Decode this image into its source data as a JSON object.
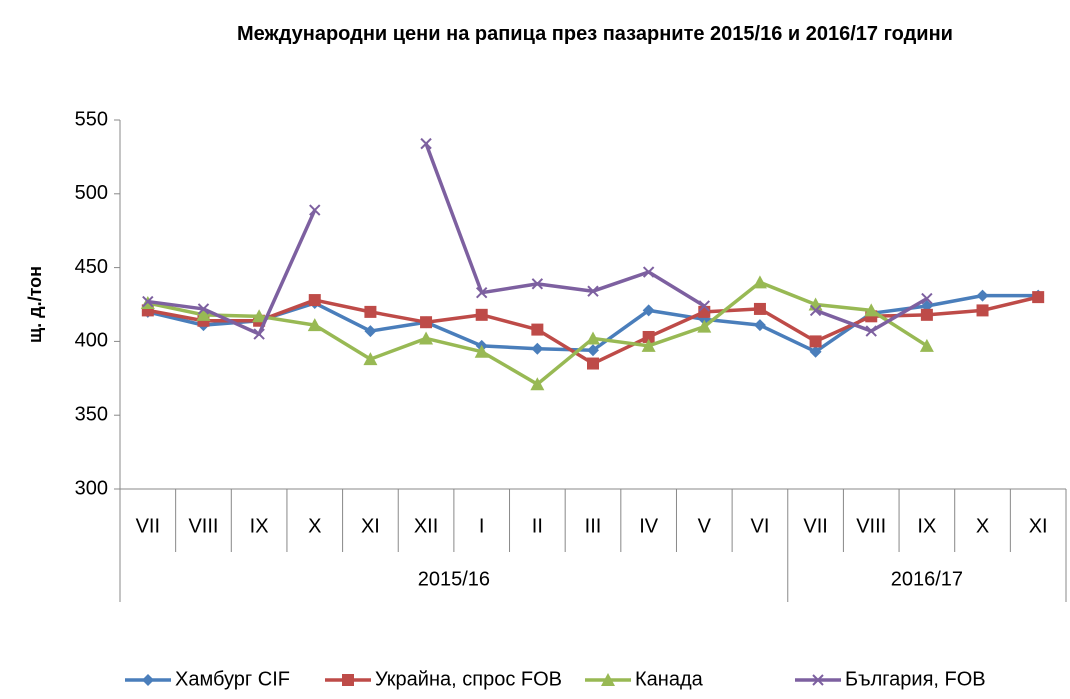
{
  "chart_data": {
    "type": "line",
    "title": "Международни цени на рапица през пазарните 2015/16  и 2016/17 години",
    "y_label": "щ. д./тон",
    "groups": [
      {
        "label": "2015/16",
        "categories": [
          "VII",
          "VIII",
          "IX",
          "X",
          "XI",
          "XII",
          "I",
          "II",
          "III",
          "IV",
          "V",
          "VI"
        ]
      },
      {
        "label": "2016/17",
        "categories": [
          "VII",
          "VIII",
          "IX",
          "X",
          "XI"
        ]
      }
    ],
    "ylim": [
      300,
      550
    ],
    "yticks": [
      300,
      350,
      400,
      450,
      500,
      550
    ],
    "grid": false,
    "legend": "bottom",
    "series": [
      {
        "name": "Хамбург CIF",
        "color": "#4a7ebb",
        "marker": "diamond",
        "values": [
          420,
          411,
          414,
          426,
          407,
          413,
          397,
          395,
          394,
          421,
          415,
          411,
          393,
          419,
          424,
          431,
          431
        ]
      },
      {
        "name": "Украйна, спрос FOB",
        "color": "#be4b48",
        "marker": "square",
        "values": [
          421,
          414,
          414,
          428,
          420,
          413,
          418,
          408,
          385,
          403,
          420,
          422,
          400,
          417,
          418,
          421,
          430
        ]
      },
      {
        "name": "Канада",
        "color": "#98b954",
        "marker": "triangle",
        "values": [
          426,
          418,
          417,
          411,
          388,
          402,
          393,
          371,
          402,
          397,
          410,
          440,
          425,
          421,
          397,
          null,
          null
        ]
      },
      {
        "name": "България, FOB",
        "color": "#7d60a0",
        "marker": "x",
        "values": [
          427,
          422,
          405,
          489,
          null,
          534,
          433,
          439,
          434,
          447,
          424,
          null,
          421,
          407,
          429,
          null,
          null
        ]
      }
    ]
  }
}
